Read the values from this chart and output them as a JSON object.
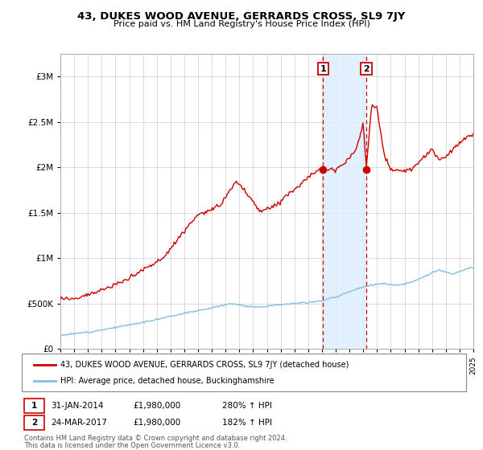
{
  "title": "43, DUKES WOOD AVENUE, GERRARDS CROSS, SL9 7JY",
  "subtitle": "Price paid vs. HM Land Registry's House Price Index (HPI)",
  "legend_line1": "43, DUKES WOOD AVENUE, GERRARDS CROSS, SL9 7JY (detached house)",
  "legend_line2": "HPI: Average price, detached house, Buckinghamshire",
  "annotation1_label": "1",
  "annotation1_date": "31-JAN-2014",
  "annotation1_price": "£1,980,000",
  "annotation1_hpi": "280% ↑ HPI",
  "annotation2_label": "2",
  "annotation2_date": "24-MAR-2017",
  "annotation2_price": "£1,980,000",
  "annotation2_hpi": "182% ↑ HPI",
  "footnote1": "Contains HM Land Registry data © Crown copyright and database right 2024.",
  "footnote2": "This data is licensed under the Open Government Licence v3.0.",
  "hpi_color": "#7fbfdf",
  "price_color": "#cc0000",
  "point_color": "#cc0000",
  "shading_color": "#ddeeff",
  "vline_color": "#cc0000",
  "sale1_year": 2014.08,
  "sale2_year": 2017.23,
  "sale1_value": 1980000,
  "sale2_value": 1980000,
  "ylim_max": 3250000,
  "background_color": "#ffffff",
  "grid_color": "#cccccc",
  "hpi_waypoints_t": [
    1995.0,
    1996.0,
    1997.5,
    1999.0,
    2001.0,
    2003.0,
    2005.0,
    2007.5,
    2008.5,
    2009.5,
    2011.0,
    2013.0,
    2014.0,
    2015.0,
    2016.5,
    2017.5,
    2018.5,
    2019.5,
    2020.5,
    2021.5,
    2022.5,
    2023.5,
    2024.5,
    2025.0
  ],
  "hpi_waypoints_p": [
    150000,
    165000,
    195000,
    235000,
    290000,
    360000,
    420000,
    500000,
    470000,
    460000,
    490000,
    510000,
    530000,
    570000,
    660000,
    700000,
    720000,
    700000,
    730000,
    800000,
    870000,
    820000,
    880000,
    900000
  ],
  "price_waypoints_t": [
    1995.0,
    1996.0,
    1997.5,
    1999.0,
    2001.0,
    2002.5,
    2003.5,
    2005.0,
    2006.5,
    2007.8,
    2008.5,
    2009.5,
    2010.5,
    2011.5,
    2012.5,
    2013.5,
    2014.08,
    2015.0,
    2016.0,
    2016.5,
    2017.0,
    2017.23,
    2017.6,
    2018.0,
    2018.5,
    2019.0,
    2019.5,
    2020.5,
    2021.0,
    2021.5,
    2022.0,
    2022.5,
    2023.0,
    2023.5,
    2024.0,
    2024.5,
    2025.0
  ],
  "price_waypoints_p": [
    555000,
    555000,
    620000,
    700000,
    870000,
    1000000,
    1210000,
    1480000,
    1560000,
    1850000,
    1720000,
    1510000,
    1570000,
    1700000,
    1820000,
    1950000,
    1980000,
    1980000,
    2100000,
    2200000,
    2500000,
    1980000,
    2680000,
    2650000,
    2150000,
    1980000,
    1950000,
    1980000,
    2050000,
    2120000,
    2200000,
    2080000,
    2120000,
    2200000,
    2270000,
    2330000,
    2350000
  ]
}
